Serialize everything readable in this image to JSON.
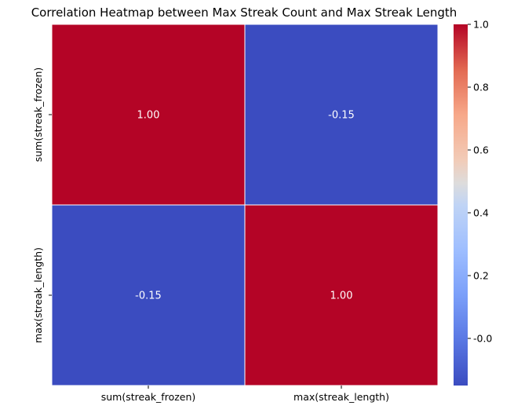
{
  "chart_data": {
    "type": "heatmap",
    "title": "Correlation Heatmap between Max Streak Count and Max Streak Length",
    "x_labels": [
      "sum(streak_frozen)",
      "max(streak_length)"
    ],
    "y_labels": [
      "sum(streak_frozen)",
      "max(streak_length)"
    ],
    "values": [
      [
        1.0,
        -0.15
      ],
      [
        -0.15,
        1.0
      ]
    ],
    "cell_labels": [
      [
        "1.00",
        "-0.15"
      ],
      [
        "-0.15",
        "1.00"
      ]
    ],
    "colormap": "coolwarm",
    "colorbar": {
      "range": [
        -0.15,
        1.0
      ],
      "ticks": [
        -0.0,
        0.2,
        0.4,
        0.6,
        0.8,
        1.0
      ],
      "tick_labels": [
        "-0.0",
        "0.2",
        "0.4",
        "0.6",
        "0.8",
        "1.0"
      ]
    },
    "colors": {
      "high": "#b40426",
      "low": "#3b4cc0",
      "grid_line": "#ffffff"
    }
  }
}
